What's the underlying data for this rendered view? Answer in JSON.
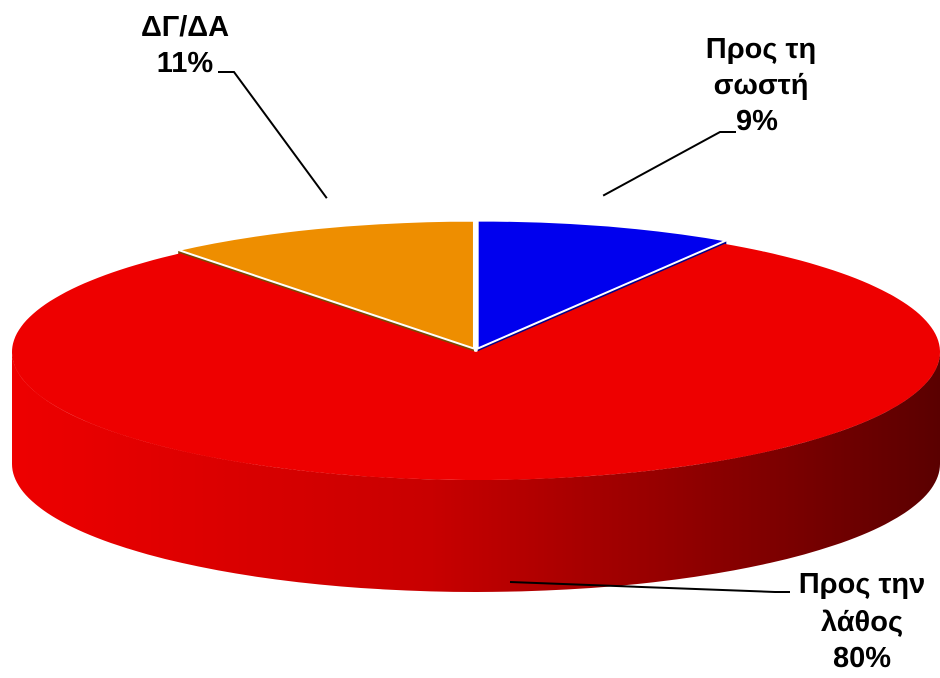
{
  "chart_data": {
    "type": "pie",
    "style": "3d",
    "slices": [
      {
        "label_lines": [
          "Προς τη",
          "σωστή"
        ],
        "value_label": "9%",
        "value": 9,
        "color": "#0000EE",
        "side_color": "#00008B",
        "exploded": true
      },
      {
        "label_lines": [
          "Προς την",
          "λάθος"
        ],
        "value_label": "80%",
        "value": 80,
        "color": "#EE0000",
        "side_color": "#600000",
        "exploded": false
      },
      {
        "label_lines": [
          "ΔΓ/ΔΑ"
        ],
        "value_label": "11%",
        "value": 11,
        "color": "#EE8E00",
        "side_color": "#7A4A00",
        "exploded": true
      }
    ]
  }
}
